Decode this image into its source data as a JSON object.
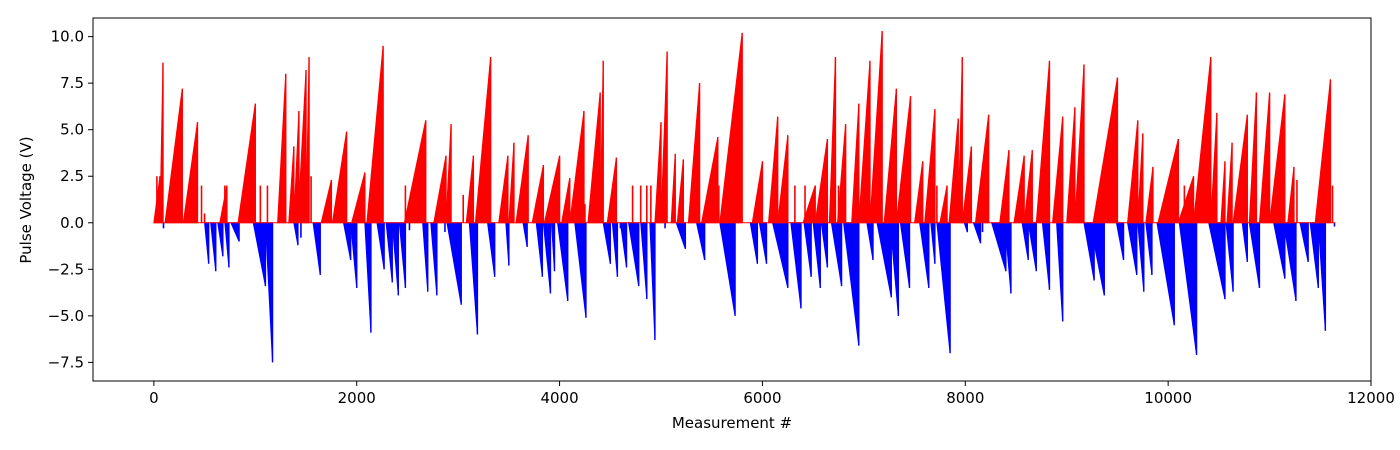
{
  "chart_data": {
    "type": "bar",
    "xlabel": "Measurement #",
    "ylabel": "Pulse Voltage (V)",
    "xlim": [
      -600,
      12000
    ],
    "ylim": [
      -8.5,
      11.0
    ],
    "grid": false,
    "colors": {
      "positive": "#ff0000",
      "negative": "#0000ff"
    },
    "x_ticks": [
      0,
      2000,
      4000,
      6000,
      8000,
      10000,
      12000
    ],
    "x_tick_labels": [
      "0",
      "2000",
      "4000",
      "6000",
      "8000",
      "10000",
      "12000"
    ],
    "y_ticks": [
      -7.5,
      -5.0,
      -2.5,
      0.0,
      2.5,
      5.0,
      7.5,
      10.0
    ],
    "y_tick_labels": [
      "−7.5",
      "−5.0",
      "−2.5",
      "0.0",
      "2.5",
      "5.0",
      "7.5",
      "10.0"
    ],
    "series": [
      {
        "polarity": "positive",
        "ramps": [
          [
            0,
            60,
            2.5
          ],
          [
            60,
            90,
            8.6
          ],
          [
            110,
            280,
            7.2
          ],
          [
            290,
            430,
            5.4
          ],
          [
            650,
            720,
            2.0
          ],
          [
            830,
            1000,
            6.4
          ],
          [
            1220,
            1300,
            8.0
          ],
          [
            1330,
            1380,
            4.1
          ],
          [
            1380,
            1430,
            6.0
          ],
          [
            1420,
            1500,
            8.2
          ],
          [
            1500,
            1530,
            8.9
          ],
          [
            1650,
            1750,
            2.3
          ],
          [
            1760,
            1900,
            4.9
          ],
          [
            1950,
            2080,
            2.7
          ],
          [
            2100,
            2260,
            9.5
          ],
          [
            2470,
            2680,
            5.5
          ],
          [
            2760,
            2880,
            3.6
          ],
          [
            2880,
            2930,
            5.3
          ],
          [
            3080,
            3150,
            3.6
          ],
          [
            3170,
            3320,
            8.9
          ],
          [
            3400,
            3490,
            3.6
          ],
          [
            3500,
            3550,
            4.3
          ],
          [
            3570,
            3690,
            4.7
          ],
          [
            3730,
            3840,
            3.1
          ],
          [
            3850,
            4000,
            3.6
          ],
          [
            4020,
            4100,
            2.4
          ],
          [
            4100,
            4240,
            6.0
          ],
          [
            4280,
            4400,
            7.0
          ],
          [
            4400,
            4430,
            8.7
          ],
          [
            4470,
            4560,
            3.5
          ],
          [
            4940,
            5000,
            5.4
          ],
          [
            5000,
            5060,
            9.2
          ],
          [
            5100,
            5140,
            3.7
          ],
          [
            5160,
            5220,
            3.4
          ],
          [
            5270,
            5380,
            7.5
          ],
          [
            5400,
            5560,
            4.6
          ],
          [
            5580,
            5800,
            10.2
          ],
          [
            5900,
            6000,
            3.3
          ],
          [
            6060,
            6150,
            5.7
          ],
          [
            6150,
            6250,
            4.7
          ],
          [
            6400,
            6520,
            2.0
          ],
          [
            6520,
            6640,
            4.5
          ],
          [
            6660,
            6720,
            8.9
          ],
          [
            6740,
            6820,
            5.3
          ],
          [
            6880,
            6950,
            6.4
          ],
          [
            6950,
            7060,
            8.7
          ],
          [
            7060,
            7180,
            10.3
          ],
          [
            7200,
            7320,
            7.2
          ],
          [
            7320,
            7460,
            6.8
          ],
          [
            7500,
            7580,
            3.3
          ],
          [
            7600,
            7700,
            6.1
          ],
          [
            7750,
            7820,
            2.0
          ],
          [
            7840,
            7930,
            5.6
          ],
          [
            7930,
            7970,
            8.9
          ],
          [
            7970,
            8060,
            4.1
          ],
          [
            8100,
            8230,
            5.8
          ],
          [
            8340,
            8430,
            3.9
          ],
          [
            8480,
            8580,
            3.6
          ],
          [
            8580,
            8660,
            3.9
          ],
          [
            8700,
            8830,
            8.7
          ],
          [
            8860,
            8960,
            5.7
          ],
          [
            9000,
            9080,
            6.2
          ],
          [
            9080,
            9170,
            8.5
          ],
          [
            9260,
            9500,
            7.8
          ],
          [
            9600,
            9700,
            5.5
          ],
          [
            9700,
            9750,
            4.8
          ],
          [
            9780,
            9850,
            3.0
          ],
          [
            9900,
            10100,
            4.5
          ],
          [
            10100,
            10250,
            2.5
          ],
          [
            10250,
            10420,
            8.9
          ],
          [
            10420,
            10480,
            5.9
          ],
          [
            10520,
            10560,
            3.3
          ],
          [
            10580,
            10630,
            4.3
          ],
          [
            10640,
            10780,
            5.8
          ],
          [
            10800,
            10870,
            7.0
          ],
          [
            10900,
            11000,
            7.0
          ],
          [
            11000,
            11150,
            6.9
          ],
          [
            11180,
            11240,
            3.0
          ],
          [
            11450,
            11600,
            7.7
          ]
        ],
        "spikes": [
          [
            30,
            2.5
          ],
          [
            470,
            2.0
          ],
          [
            500,
            0.5
          ],
          [
            700,
            2.0
          ],
          [
            1050,
            2.0
          ],
          [
            1120,
            2.0
          ],
          [
            1270,
            2.5
          ],
          [
            1550,
            2.5
          ],
          [
            1830,
            2.2
          ],
          [
            2480,
            2.0
          ],
          [
            3050,
            1.5
          ],
          [
            3280,
            1.0
          ],
          [
            3960,
            2.0
          ],
          [
            4250,
            1.0
          ],
          [
            4720,
            2.0
          ],
          [
            4800,
            2.0
          ],
          [
            4860,
            2.0
          ],
          [
            4900,
            2.0
          ],
          [
            5570,
            2.0
          ],
          [
            5670,
            2.0
          ],
          [
            6320,
            2.0
          ],
          [
            6420,
            2.0
          ],
          [
            6750,
            2.0
          ],
          [
            7240,
            2.0
          ],
          [
            7720,
            2.0
          ],
          [
            8040,
            2.3
          ],
          [
            8650,
            2.2
          ],
          [
            9650,
            2.0
          ],
          [
            10050,
            2.0
          ],
          [
            10100,
            2.0
          ],
          [
            10160,
            2.0
          ],
          [
            11270,
            2.3
          ],
          [
            11620,
            2.0
          ]
        ]
      },
      {
        "polarity": "negative",
        "ramps": [
          [
            500,
            540,
            -2.2
          ],
          [
            560,
            610,
            -2.6
          ],
          [
            630,
            680,
            -1.8
          ],
          [
            700,
            740,
            -2.4
          ],
          [
            760,
            840,
            -1.0
          ],
          [
            980,
            1100,
            -3.4
          ],
          [
            1100,
            1170,
            -7.5
          ],
          [
            1380,
            1420,
            -1.2
          ],
          [
            1570,
            1640,
            -2.8
          ],
          [
            1870,
            1940,
            -2.0
          ],
          [
            1940,
            2000,
            -3.5
          ],
          [
            2080,
            2140,
            -5.9
          ],
          [
            2200,
            2270,
            -2.5
          ],
          [
            2290,
            2350,
            -3.2
          ],
          [
            2350,
            2410,
            -3.9
          ],
          [
            2420,
            2480,
            -3.5
          ],
          [
            2650,
            2700,
            -3.7
          ],
          [
            2730,
            2790,
            -3.9
          ],
          [
            2890,
            3030,
            -4.4
          ],
          [
            3110,
            3190,
            -6.0
          ],
          [
            3290,
            3360,
            -2.9
          ],
          [
            3470,
            3500,
            -2.3
          ],
          [
            3640,
            3680,
            -1.3
          ],
          [
            3770,
            3830,
            -2.9
          ],
          [
            3840,
            3910,
            -3.8
          ],
          [
            3920,
            3950,
            -2.6
          ],
          [
            3980,
            4080,
            -4.2
          ],
          [
            4150,
            4260,
            -5.1
          ],
          [
            4430,
            4500,
            -2.2
          ],
          [
            4520,
            4570,
            -2.9
          ],
          [
            4600,
            4660,
            -2.4
          ],
          [
            4680,
            4780,
            -3.4
          ],
          [
            4800,
            4860,
            -4.1
          ],
          [
            4890,
            4940,
            -6.3
          ],
          [
            5150,
            5240,
            -1.4
          ],
          [
            5350,
            5430,
            -2.0
          ],
          [
            5580,
            5730,
            -5.0
          ],
          [
            5880,
            5950,
            -2.2
          ],
          [
            5970,
            6040,
            -2.2
          ],
          [
            6100,
            6250,
            -3.5
          ],
          [
            6280,
            6380,
            -4.6
          ],
          [
            6410,
            6480,
            -2.9
          ],
          [
            6500,
            6570,
            -3.5
          ],
          [
            6580,
            6640,
            -2.4
          ],
          [
            6680,
            6780,
            -3.4
          ],
          [
            6800,
            6950,
            -6.6
          ],
          [
            7030,
            7090,
            -2.0
          ],
          [
            7130,
            7270,
            -4.0
          ],
          [
            7260,
            7340,
            -5.0
          ],
          [
            7360,
            7450,
            -3.5
          ],
          [
            7550,
            7640,
            -3.5
          ],
          [
            7660,
            7700,
            -2.2
          ],
          [
            7720,
            7850,
            -7.0
          ],
          [
            7990,
            8020,
            -0.5
          ],
          [
            8080,
            8150,
            -1.1
          ],
          [
            8260,
            8400,
            -2.6
          ],
          [
            8390,
            8450,
            -3.8
          ],
          [
            8560,
            8620,
            -2.0
          ],
          [
            8620,
            8700,
            -2.6
          ],
          [
            8760,
            8830,
            -3.6
          ],
          [
            8900,
            8960,
            -5.3
          ],
          [
            9170,
            9270,
            -3.1
          ],
          [
            9230,
            9370,
            -3.9
          ],
          [
            9490,
            9560,
            -2.0
          ],
          [
            9600,
            9690,
            -2.8
          ],
          [
            9700,
            9760,
            -3.7
          ],
          [
            9780,
            9840,
            -2.8
          ],
          [
            9890,
            10060,
            -5.5
          ],
          [
            10110,
            10280,
            -7.1
          ],
          [
            10400,
            10560,
            -4.1
          ],
          [
            10570,
            10640,
            -3.7
          ],
          [
            10730,
            10780,
            -2.1
          ],
          [
            10800,
            10900,
            -3.5
          ],
          [
            11040,
            11150,
            -3.0
          ],
          [
            11140,
            11260,
            -4.2
          ],
          [
            11300,
            11380,
            -2.1
          ],
          [
            11400,
            11480,
            -3.5
          ],
          [
            11480,
            11550,
            -5.8
          ]
        ],
        "spikes": [
          [
            95,
            -0.3
          ],
          [
            590,
            -0.5
          ],
          [
            1450,
            -0.8
          ],
          [
            2310,
            -0.6
          ],
          [
            2520,
            -0.4
          ],
          [
            2870,
            -0.5
          ],
          [
            4600,
            -0.3
          ],
          [
            5040,
            -0.3
          ],
          [
            6600,
            -0.4
          ],
          [
            7190,
            -0.3
          ],
          [
            8170,
            -0.5
          ],
          [
            9650,
            -0.4
          ],
          [
            10470,
            -0.3
          ],
          [
            11640,
            -0.2
          ]
        ]
      }
    ]
  }
}
